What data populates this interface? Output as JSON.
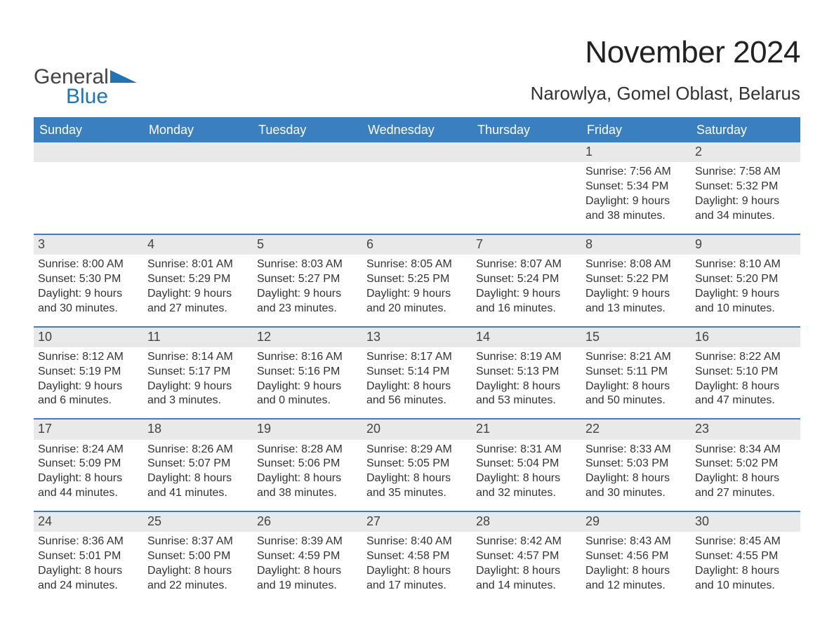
{
  "brand": {
    "word1": "General",
    "word2": "Blue",
    "word1_color": "#444444",
    "word2_color": "#1f73b7",
    "triangle_color": "#1f73b7"
  },
  "title": "November 2024",
  "location": "Narowlya, Gomel Oblast, Belarus",
  "colors": {
    "header_bg": "#3a7fbf",
    "header_text": "#ffffff",
    "row_border": "#3a7fbf",
    "daynum_bg": "#e9e9e9",
    "body_text": "#333333",
    "page_bg": "#ffffff"
  },
  "fonts": {
    "title_size_pt": 33,
    "location_size_pt": 20,
    "header_size_pt": 14,
    "body_size_pt": 12,
    "daynum_size_pt": 14
  },
  "day_headers": [
    "Sunday",
    "Monday",
    "Tuesday",
    "Wednesday",
    "Thursday",
    "Friday",
    "Saturday"
  ],
  "labels": {
    "sunrise": "Sunrise:",
    "sunset": "Sunset:",
    "daylight": "Daylight:"
  },
  "weeks": [
    [
      null,
      null,
      null,
      null,
      null,
      {
        "n": "1",
        "sunrise": "7:56 AM",
        "sunset": "5:34 PM",
        "daylight": "9 hours and 38 minutes."
      },
      {
        "n": "2",
        "sunrise": "7:58 AM",
        "sunset": "5:32 PM",
        "daylight": "9 hours and 34 minutes."
      }
    ],
    [
      {
        "n": "3",
        "sunrise": "8:00 AM",
        "sunset": "5:30 PM",
        "daylight": "9 hours and 30 minutes."
      },
      {
        "n": "4",
        "sunrise": "8:01 AM",
        "sunset": "5:29 PM",
        "daylight": "9 hours and 27 minutes."
      },
      {
        "n": "5",
        "sunrise": "8:03 AM",
        "sunset": "5:27 PM",
        "daylight": "9 hours and 23 minutes."
      },
      {
        "n": "6",
        "sunrise": "8:05 AM",
        "sunset": "5:25 PM",
        "daylight": "9 hours and 20 minutes."
      },
      {
        "n": "7",
        "sunrise": "8:07 AM",
        "sunset": "5:24 PM",
        "daylight": "9 hours and 16 minutes."
      },
      {
        "n": "8",
        "sunrise": "8:08 AM",
        "sunset": "5:22 PM",
        "daylight": "9 hours and 13 minutes."
      },
      {
        "n": "9",
        "sunrise": "8:10 AM",
        "sunset": "5:20 PM",
        "daylight": "9 hours and 10 minutes."
      }
    ],
    [
      {
        "n": "10",
        "sunrise": "8:12 AM",
        "sunset": "5:19 PM",
        "daylight": "9 hours and 6 minutes."
      },
      {
        "n": "11",
        "sunrise": "8:14 AM",
        "sunset": "5:17 PM",
        "daylight": "9 hours and 3 minutes."
      },
      {
        "n": "12",
        "sunrise": "8:16 AM",
        "sunset": "5:16 PM",
        "daylight": "9 hours and 0 minutes."
      },
      {
        "n": "13",
        "sunrise": "8:17 AM",
        "sunset": "5:14 PM",
        "daylight": "8 hours and 56 minutes."
      },
      {
        "n": "14",
        "sunrise": "8:19 AM",
        "sunset": "5:13 PM",
        "daylight": "8 hours and 53 minutes."
      },
      {
        "n": "15",
        "sunrise": "8:21 AM",
        "sunset": "5:11 PM",
        "daylight": "8 hours and 50 minutes."
      },
      {
        "n": "16",
        "sunrise": "8:22 AM",
        "sunset": "5:10 PM",
        "daylight": "8 hours and 47 minutes."
      }
    ],
    [
      {
        "n": "17",
        "sunrise": "8:24 AM",
        "sunset": "5:09 PM",
        "daylight": "8 hours and 44 minutes."
      },
      {
        "n": "18",
        "sunrise": "8:26 AM",
        "sunset": "5:07 PM",
        "daylight": "8 hours and 41 minutes."
      },
      {
        "n": "19",
        "sunrise": "8:28 AM",
        "sunset": "5:06 PM",
        "daylight": "8 hours and 38 minutes."
      },
      {
        "n": "20",
        "sunrise": "8:29 AM",
        "sunset": "5:05 PM",
        "daylight": "8 hours and 35 minutes."
      },
      {
        "n": "21",
        "sunrise": "8:31 AM",
        "sunset": "5:04 PM",
        "daylight": "8 hours and 32 minutes."
      },
      {
        "n": "22",
        "sunrise": "8:33 AM",
        "sunset": "5:03 PM",
        "daylight": "8 hours and 30 minutes."
      },
      {
        "n": "23",
        "sunrise": "8:34 AM",
        "sunset": "5:02 PM",
        "daylight": "8 hours and 27 minutes."
      }
    ],
    [
      {
        "n": "24",
        "sunrise": "8:36 AM",
        "sunset": "5:01 PM",
        "daylight": "8 hours and 24 minutes."
      },
      {
        "n": "25",
        "sunrise": "8:37 AM",
        "sunset": "5:00 PM",
        "daylight": "8 hours and 22 minutes."
      },
      {
        "n": "26",
        "sunrise": "8:39 AM",
        "sunset": "4:59 PM",
        "daylight": "8 hours and 19 minutes."
      },
      {
        "n": "27",
        "sunrise": "8:40 AM",
        "sunset": "4:58 PM",
        "daylight": "8 hours and 17 minutes."
      },
      {
        "n": "28",
        "sunrise": "8:42 AM",
        "sunset": "4:57 PM",
        "daylight": "8 hours and 14 minutes."
      },
      {
        "n": "29",
        "sunrise": "8:43 AM",
        "sunset": "4:56 PM",
        "daylight": "8 hours and 12 minutes."
      },
      {
        "n": "30",
        "sunrise": "8:45 AM",
        "sunset": "4:55 PM",
        "daylight": "8 hours and 10 minutes."
      }
    ]
  ]
}
